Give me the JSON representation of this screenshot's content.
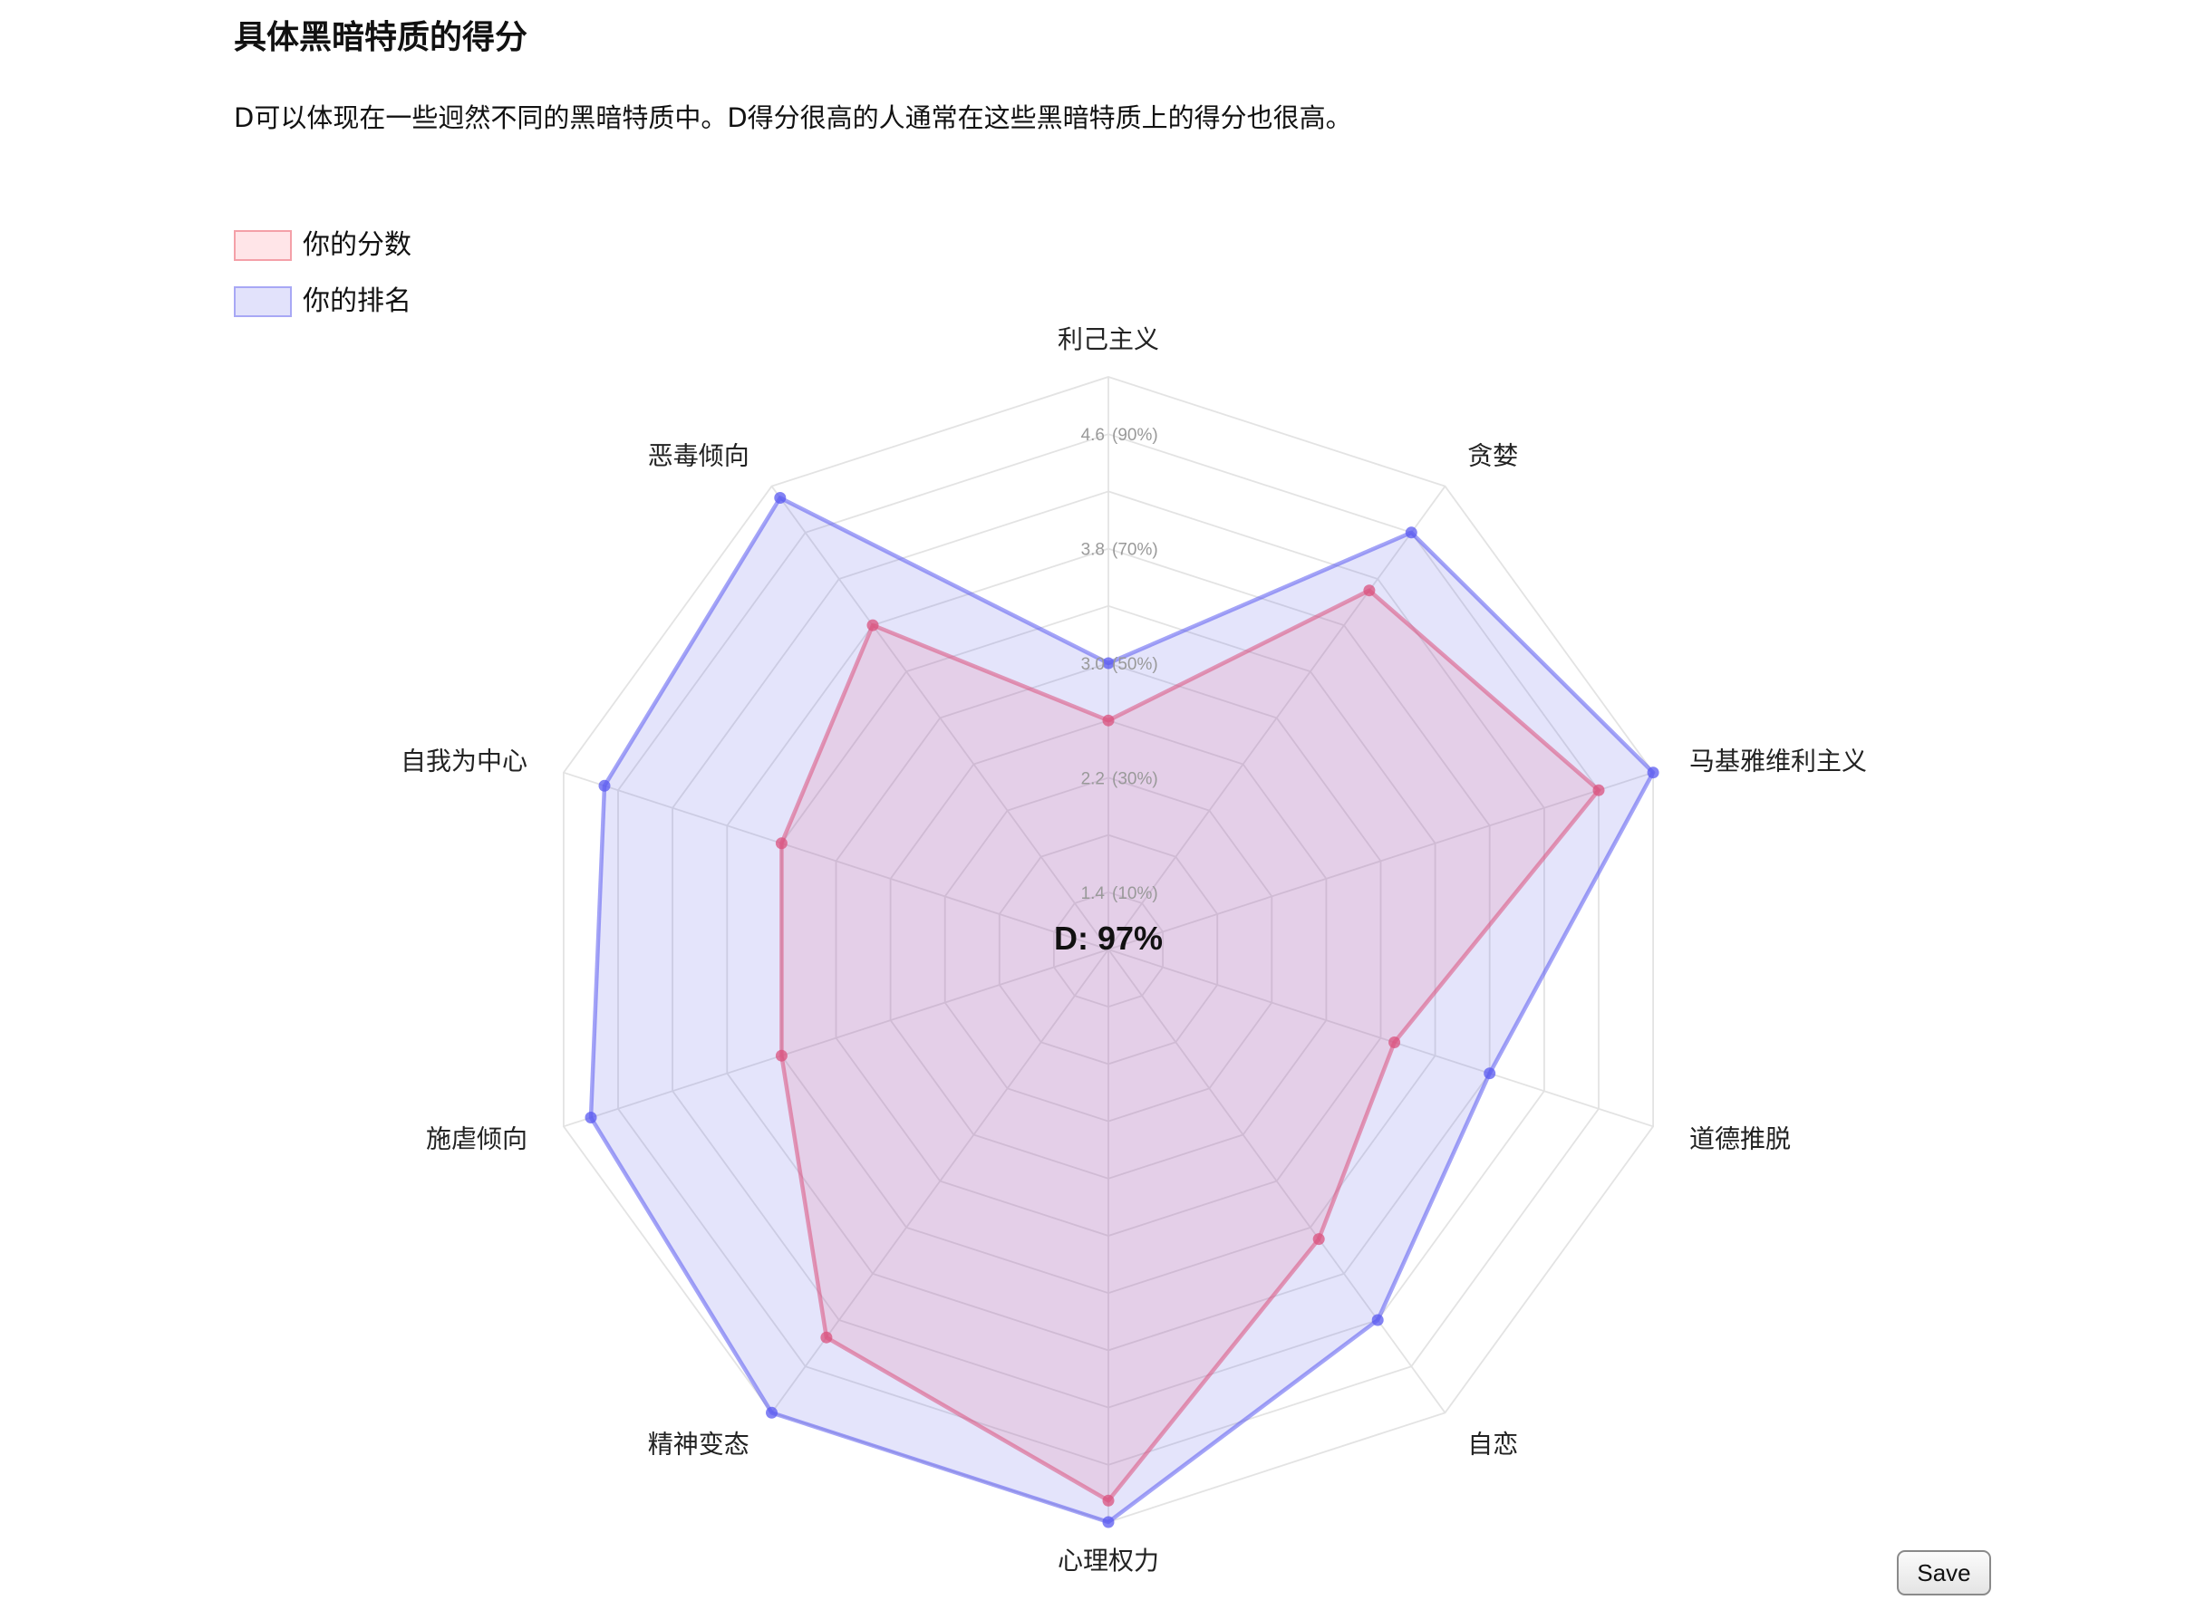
{
  "page": {
    "title": "具体黑暗特质的得分",
    "subtitle": "D可以体现在一些迥然不同的黑暗特质中。D得分很高的人通常在这些黑暗特质上的得分也很高。"
  },
  "legend": {
    "items": [
      {
        "label": "你的分数",
        "fill": "#ffe5e8",
        "stroke": "#f4a0a8"
      },
      {
        "label": "你的排名",
        "fill": "#e2e2fb",
        "stroke": "#a8a8f5"
      }
    ]
  },
  "center_label": "D: 97%",
  "save_label": "Save",
  "chart_data": {
    "type": "radar",
    "axes": [
      "利己主义",
      "贪婪",
      "马基雅维利主义",
      "道德推脱",
      "自恋",
      "心理权力",
      "精神变态",
      "施虐倾向",
      "自我为中心",
      "恶毒倾向"
    ],
    "scale": {
      "min": 1.0,
      "max": 5.0,
      "step": 0.4,
      "labeled_ticks": [
        {
          "value": 1.4,
          "label": "1.4",
          "percent": "(10%)"
        },
        {
          "value": 2.2,
          "label": "2.2",
          "percent": "(30%)"
        },
        {
          "value": 3.0,
          "label": "3.0",
          "percent": "(50%)"
        },
        {
          "value": 3.8,
          "label": "3.8",
          "percent": "(70%)"
        },
        {
          "value": 4.6,
          "label": "4.6",
          "percent": "(90%)"
        }
      ]
    },
    "series": [
      {
        "name": "你的分数",
        "color": "#f4506a",
        "fill": "rgba(255, 99, 120, 0.16)",
        "values": [
          2.6,
          4.1,
          4.6,
          3.1,
          3.5,
          4.85,
          4.35,
          3.4,
          3.4,
          3.8
        ]
      },
      {
        "name": "你的排名",
        "color": "#5a5af0",
        "fill": "rgba(90, 90, 230, 0.16)",
        "values": [
          3.0,
          4.6,
          5.0,
          3.8,
          4.2,
          5.0,
          5.0,
          4.8,
          4.7,
          4.9
        ]
      }
    ]
  }
}
